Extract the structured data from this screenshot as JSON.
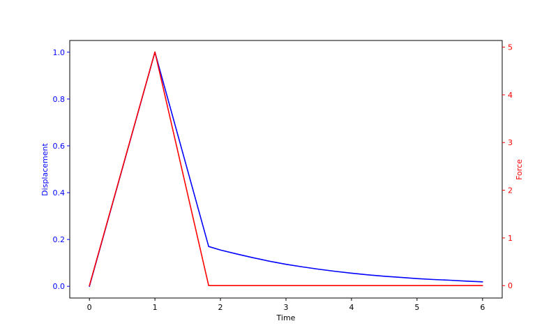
{
  "chart_data": {
    "type": "line",
    "title": "",
    "xlabel": "Time",
    "y1label": "Displacement",
    "y2label": "Force",
    "xlim": [
      -0.3,
      6.3
    ],
    "y1lim": [
      -0.05,
      1.05
    ],
    "y2lim": [
      -0.26,
      5.14
    ],
    "x_ticks": [
      "0",
      "1",
      "2",
      "3",
      "4",
      "5",
      "6"
    ],
    "y1_ticks": [
      "0.0",
      "0.2",
      "0.4",
      "0.6",
      "0.8",
      "1.0"
    ],
    "y2_ticks": [
      "0",
      "1",
      "2",
      "3",
      "4",
      "5"
    ],
    "grid": false,
    "legend": "none",
    "colors": {
      "displacement": "#0000ff",
      "force": "#ff0000",
      "axis": "#000000"
    },
    "series": [
      {
        "axis": "left",
        "color": "#0000ff",
        "x": [
          0,
          1,
          1.82,
          2,
          2.25,
          2.5,
          2.75,
          3,
          3.25,
          3.5,
          3.75,
          4,
          4.25,
          4.5,
          4.75,
          5,
          5.25,
          5.5,
          5.75,
          6
        ],
        "y": [
          0,
          1.0,
          0.17,
          0.155,
          0.138,
          0.122,
          0.107,
          0.094,
          0.083,
          0.073,
          0.064,
          0.056,
          0.049,
          0.043,
          0.038,
          0.033,
          0.029,
          0.026,
          0.022,
          0.019
        ]
      },
      {
        "axis": "right",
        "color": "#ff0000",
        "x": [
          0,
          1,
          1.82,
          1.82,
          6
        ],
        "y": [
          0,
          4.9,
          0,
          0,
          0
        ]
      }
    ]
  }
}
